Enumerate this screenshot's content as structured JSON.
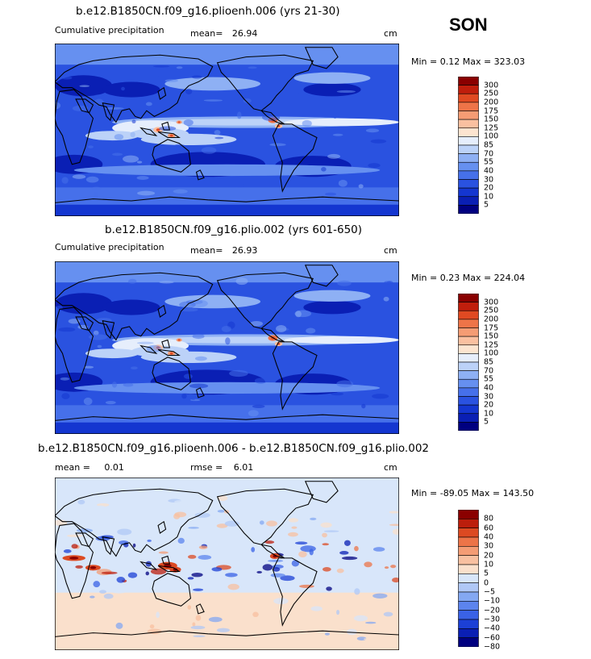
{
  "season": "SON",
  "panels": [
    {
      "id": "p1",
      "title": "b.e12.B1850CN.f09_g16.plioenh.006 (yrs 21-30)",
      "subtitle_left": "Cumulative precipitation",
      "mean_label": "mean=",
      "mean_value": "26.94",
      "units": "cm",
      "minmax": "Min =    0.12 Max = 323.03",
      "scale": "precip",
      "colorbar_levels": [
        "300",
        "250",
        "200",
        "175",
        "150",
        "125",
        "100",
        "85",
        "70",
        "55",
        "40",
        "30",
        "20",
        "10",
        "5"
      ]
    },
    {
      "id": "p2",
      "title": "b.e12.B1850CN.f09_g16.plio.002 (yrs 601-650)",
      "subtitle_left": "Cumulative precipitation",
      "mean_label": "mean=",
      "mean_value": "26.93",
      "units": "cm",
      "minmax": "Min =    0.23 Max = 224.04",
      "scale": "precip",
      "colorbar_levels": [
        "300",
        "250",
        "200",
        "175",
        "150",
        "125",
        "100",
        "85",
        "70",
        "55",
        "40",
        "30",
        "20",
        "10",
        "5"
      ]
    },
    {
      "id": "p3",
      "title": "b.e12.B1850CN.f09_g16.plioenh.006 - b.e12.B1850CN.f09_g16.plio.002",
      "subtitle_left": "mean =",
      "mean_value": "0.01",
      "rmse_label": "rmse =",
      "rmse_value": "6.01",
      "units": "cm",
      "minmax": "Min = -89.05 Max = 143.50",
      "scale": "diff",
      "colorbar_levels": [
        "80",
        "60",
        "40",
        "30",
        "20",
        "10",
        "5",
        "0",
        "−5",
        "−10",
        "−20",
        "−30",
        "−40",
        "−60",
        "−80"
      ]
    }
  ],
  "colors": {
    "precip": [
      "#000080",
      "#0a1fb4",
      "#1436d0",
      "#2a52e0",
      "#4670ea",
      "#6690f0",
      "#8eb0f4",
      "#bcd2f8",
      "#e6eefc",
      "#fce4d0",
      "#fac0a0",
      "#f59c74",
      "#ee7448",
      "#e04a22",
      "#c01e0c",
      "#8a0000"
    ],
    "diff": [
      "#000080",
      "#0a1fb4",
      "#1c40d6",
      "#3a62e6",
      "#5c84ee",
      "#84a8f2",
      "#b0c8f6",
      "#d8e6fa",
      "#fae0cc",
      "#f8c0a0",
      "#f49c74",
      "#ec7448",
      "#dc4a22",
      "#bc1e0c",
      "#8a0000"
    ]
  }
}
